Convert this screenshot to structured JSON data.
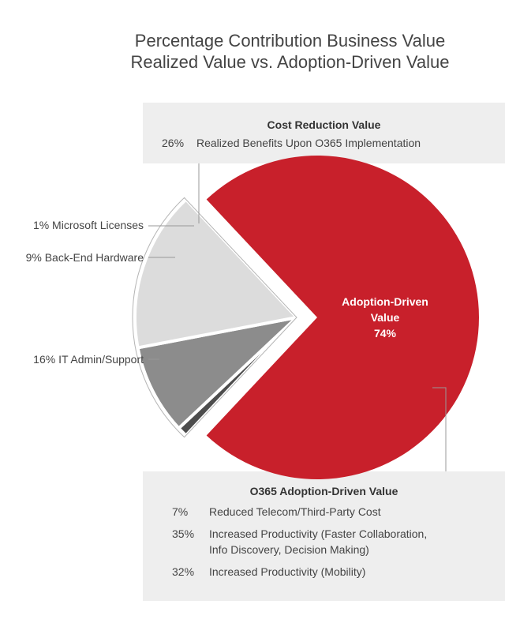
{
  "chart_data": {
    "type": "pie",
    "title": "Percentage Contribution Business Value",
    "subtitle": "Realized Value vs. Adoption-Driven Value",
    "slices": [
      {
        "name": "Adoption-Driven Value",
        "value": 74,
        "label_line1": "Adoption-Driven",
        "label_line2": "Value",
        "label_pct": "74%",
        "color": "#c8202b"
      },
      {
        "name": "Microsoft Licenses",
        "value": 1,
        "label": "1% Microsoft Licenses",
        "color": "#4d4d4d"
      },
      {
        "name": "Back-End Hardware",
        "value": 9,
        "label": "9% Back-End Hardware",
        "color": "#8c8c8c"
      },
      {
        "name": "IT Admin/Support",
        "value": 16,
        "label": "16% IT Admin/Support",
        "color": "#dcdcdc"
      }
    ],
    "cost_reduction": {
      "title": "Cost Reduction Value",
      "pct": "26%",
      "text": "Realized Benefits Upon O365 Implementation"
    },
    "adoption": {
      "title": "O365 Adoption-Driven Value",
      "items": [
        {
          "pct": "7%",
          "line1": "Reduced Telecom/Third-Party Cost",
          "line2": ""
        },
        {
          "pct": "35%",
          "line1": "Increased Productivity (Faster Collaboration,",
          "line2": "Info Discovery, Decision Making)"
        },
        {
          "pct": "32%",
          "line1": "Increased Productivity (Mobility)",
          "line2": ""
        }
      ]
    }
  }
}
